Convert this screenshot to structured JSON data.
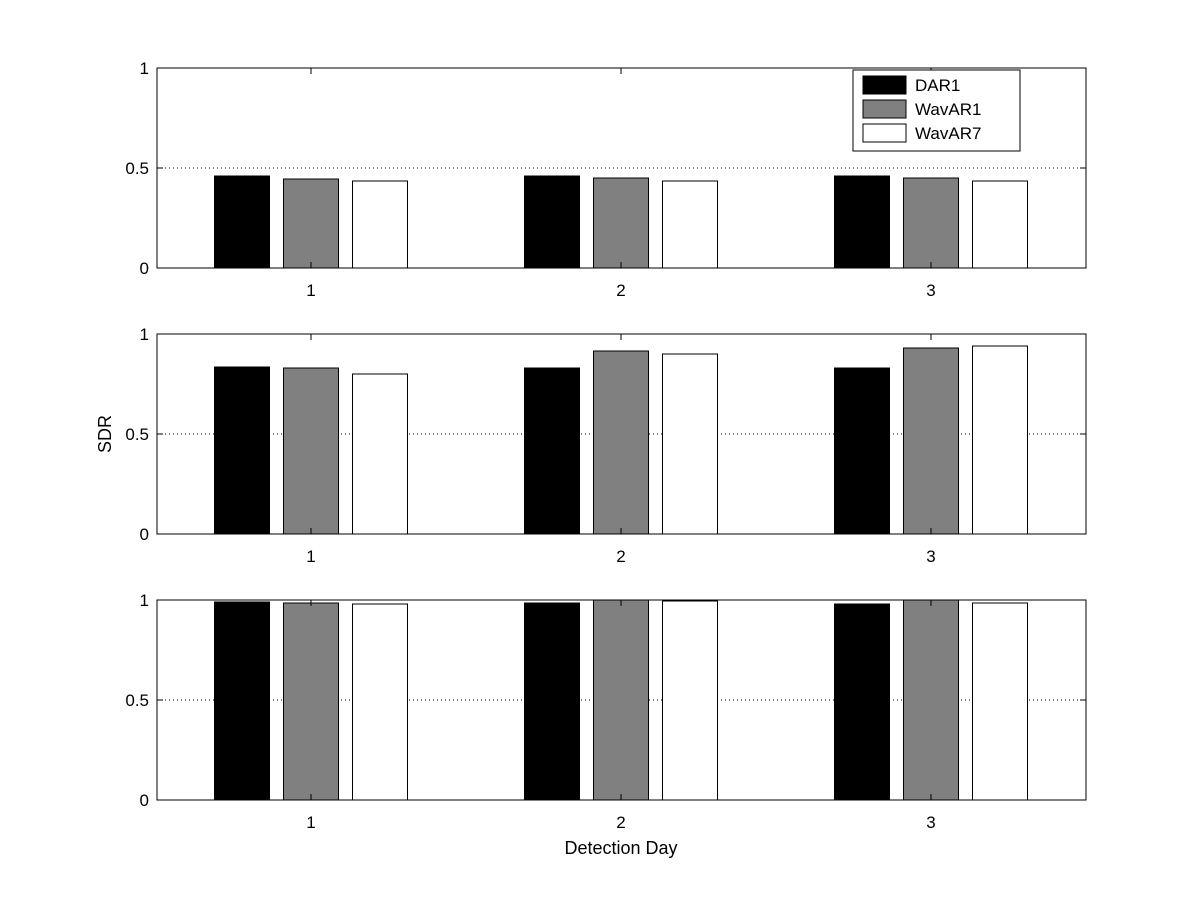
{
  "figure": {
    "ylabel": "SDR",
    "xlabel": "Detection Day"
  },
  "legend": {
    "placement": "top-right",
    "entries": [
      {
        "name": "DAR1",
        "color": "#000000"
      },
      {
        "name": "WavAR1",
        "color": "#808080"
      },
      {
        "name": "WavAR7",
        "color": "#ffffff"
      }
    ]
  },
  "chart_data": [
    {
      "type": "bar",
      "categories": [
        "1",
        "2",
        "3"
      ],
      "ylim": [
        0,
        1
      ],
      "yticks": [
        "0",
        "0.5",
        "1"
      ],
      "grid": "dotted-at-0.5",
      "series": [
        {
          "name": "DAR1",
          "values": [
            0.46,
            0.46,
            0.46
          ]
        },
        {
          "name": "WavAR1",
          "values": [
            0.445,
            0.45,
            0.45
          ]
        },
        {
          "name": "WavAR7",
          "values": [
            0.435,
            0.435,
            0.435
          ]
        }
      ]
    },
    {
      "type": "bar",
      "categories": [
        "1",
        "2",
        "3"
      ],
      "ylim": [
        0,
        1
      ],
      "yticks": [
        "0",
        "0.5",
        "1"
      ],
      "grid": "dotted-at-0.5",
      "series": [
        {
          "name": "DAR1",
          "values": [
            0.835,
            0.83,
            0.83
          ]
        },
        {
          "name": "WavAR1",
          "values": [
            0.83,
            0.915,
            0.93
          ]
        },
        {
          "name": "WavAR7",
          "values": [
            0.8,
            0.9,
            0.94
          ]
        }
      ]
    },
    {
      "type": "bar",
      "categories": [
        "1",
        "2",
        "3"
      ],
      "ylim": [
        0,
        1
      ],
      "yticks": [
        "0",
        "0.5",
        "1"
      ],
      "grid": "dotted-at-0.5",
      "series": [
        {
          "name": "DAR1",
          "values": [
            0.99,
            0.985,
            0.98
          ]
        },
        {
          "name": "WavAR1",
          "values": [
            0.985,
            1.0,
            1.0
          ]
        },
        {
          "name": "WavAR7",
          "values": [
            0.98,
            0.995,
            0.985
          ]
        }
      ]
    }
  ]
}
